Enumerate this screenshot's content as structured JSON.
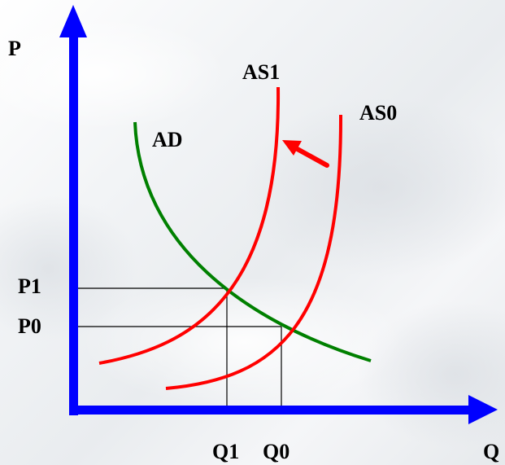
{
  "axes": {
    "y_label": "P",
    "x_label": "Q"
  },
  "curves": {
    "ad_label": "AD",
    "as1_label": "AS1",
    "as0_label": "AS0"
  },
  "ticks": {
    "p1": "P1",
    "p0": "P0",
    "q1": "Q1",
    "q0": "Q0"
  },
  "colors": {
    "axis": "#0000ff",
    "supply": "#ff0000",
    "demand": "#008000",
    "guides": "#000000"
  },
  "icons": {
    "shift_arrow": "arrow-up-left-icon"
  }
}
